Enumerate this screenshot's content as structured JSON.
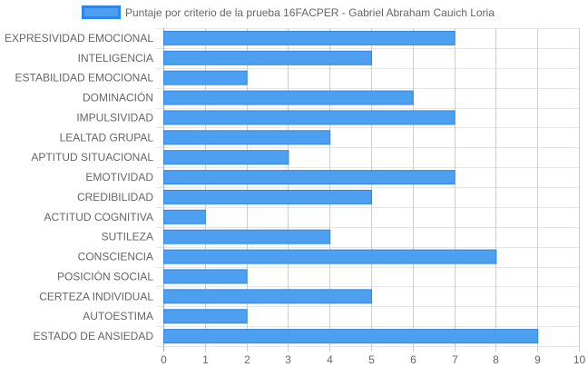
{
  "chart_data": {
    "type": "bar",
    "orientation": "horizontal",
    "categories": [
      "EXPRESIVIDAD EMOCIONAL",
      "INTELIGENCIA",
      "ESTABILIDAD EMOCIONAL",
      "DOMINACIÓN",
      "IMPULSIVIDAD",
      "LEALTAD GRUPAL",
      "APTITUD SITUACIONAL",
      "EMOTIVIDAD",
      "CREDIBILIDAD",
      "ACTITUD COGNITIVA",
      "SUTILEZA",
      "CONSCIENCIA",
      "POSICIÓN SOCIAL",
      "CERTEZA INDIVIDUAL",
      "AUTOESTIMA",
      "ESTADO DE ANSIEDAD"
    ],
    "series": [
      {
        "name": "Puntaje por criterio de la prueba 16FACPER - Gabriel Abraham Cauich Loria",
        "values": [
          7,
          5,
          2,
          6,
          7,
          4,
          3,
          7,
          5,
          1,
          4,
          8,
          2,
          5,
          2,
          9
        ],
        "color": "#4d9ff0",
        "border_color": "#2f86e6"
      }
    ],
    "xlim": [
      0,
      10
    ],
    "x_ticks": [
      "0",
      "1",
      "2",
      "3",
      "4",
      "5",
      "6",
      "7",
      "8",
      "9",
      "10"
    ],
    "grid": true,
    "legend_position": "top"
  }
}
